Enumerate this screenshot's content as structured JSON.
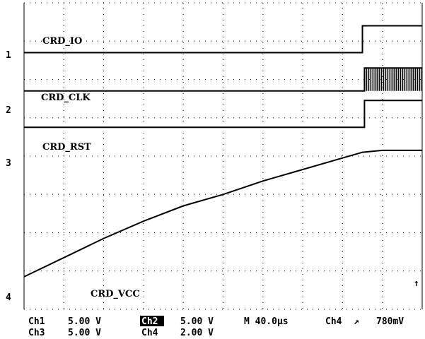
{
  "chart_data": {
    "type": "line",
    "title": "",
    "grid": true,
    "channels": [
      {
        "name": "CRD_IO",
        "marker": "1",
        "x": [
          0,
          8.5,
          8.5,
          10
        ],
        "y": [
          6.7,
          6.7,
          7.4,
          7.4
        ]
      },
      {
        "name": "CRD_CLK",
        "marker": "2",
        "x": [
          0,
          8.55,
          8.55,
          10
        ],
        "y": [
          5.7,
          5.7,
          6.3,
          6.3
        ],
        "burst_start": 8.55,
        "burst_low": 5.7,
        "burst_high": 6.3
      },
      {
        "name": "CRD_RST",
        "marker": "3",
        "x": [
          0,
          8.55,
          8.55,
          10
        ],
        "y": [
          4.75,
          4.75,
          5.45,
          5.45
        ]
      },
      {
        "name": "CRD_VCC",
        "marker": "4",
        "x": [
          0,
          1,
          2,
          3,
          4,
          5,
          6,
          7,
          8,
          8.5,
          9,
          10
        ],
        "y": [
          0.85,
          1.35,
          1.85,
          2.3,
          2.7,
          3.0,
          3.35,
          3.65,
          3.95,
          4.1,
          4.15,
          4.15
        ]
      }
    ],
    "trigger_marker": "↑",
    "readouts": [
      {
        "ch": "Ch1",
        "scale": "5.00 V"
      },
      {
        "ch": "Ch2",
        "scale": "5.00 V"
      },
      {
        "ch": "Ch3",
        "scale": "5.00 V"
      },
      {
        "ch": "Ch4",
        "scale": "2.00 V"
      }
    ],
    "timebase": "M 40.0µs",
    "trigger": {
      "source": "Ch4",
      "slope": "↗",
      "level": "780mV"
    }
  }
}
